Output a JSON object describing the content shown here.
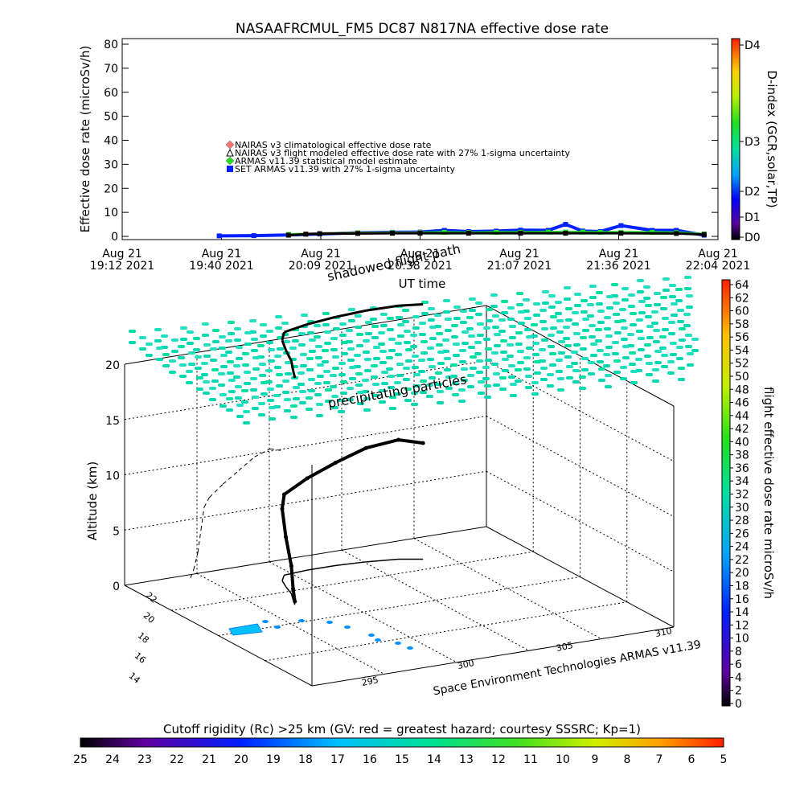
{
  "chart_data": [
    {
      "type": "scatter",
      "title": "NASAAFRCMUL_FM5 DC87 N817NA effective dose rate",
      "ylabel": "Effective dose rate (microSv/h)",
      "xlabel": "UT time",
      "ylim": [
        0,
        80
      ],
      "yticks": [
        "0",
        "10",
        "20",
        "30",
        "40",
        "50",
        "60",
        "70",
        "80"
      ],
      "xticks": [
        {
          "line1": "Aug 21",
          "line2": "19:12 2021"
        },
        {
          "line1": "Aug 21",
          "line2": "19:40 2021"
        },
        {
          "line1": "Aug 21",
          "line2": "20:09 2021"
        },
        {
          "line1": "Aug 21",
          "line2": "20:38 2021"
        },
        {
          "line1": "Aug 21",
          "line2": "21:07 2021"
        },
        {
          "line1": "Aug 21",
          "line2": "21:36 2021"
        },
        {
          "line1": "Aug 21",
          "line2": "22:04 2021"
        }
      ],
      "xlim": [
        "19:12",
        "22:04"
      ],
      "legend": [
        {
          "label": "NAIRAS v3 climatological effective dose rate",
          "color": "#ff7070",
          "marker": "diamond"
        },
        {
          "label": "NAIRAS v3 flight modeled effective dose rate with 27% 1-sigma uncertainty",
          "color": "#000000",
          "marker": "triangle"
        },
        {
          "label": "ARMAS v11.39 statistical model estimate",
          "color": "#20e020",
          "marker": "diamond"
        },
        {
          "label": "SET ARMAS v11.39 with 27% 1-sigma uncertainty",
          "color": "#0020ff",
          "marker": "square"
        }
      ],
      "series": [
        {
          "name": "SET ARMAS v11.39 with 27% 1-sigma uncertainty",
          "color": "#0020ff",
          "x": [
            "19:40",
            "19:50",
            "20:00",
            "20:09",
            "20:20",
            "20:30",
            "20:38",
            "20:45",
            "20:52",
            "21:00",
            "21:07",
            "21:15",
            "21:20",
            "21:25",
            "21:30",
            "21:36",
            "21:45",
            "21:52",
            "22:00"
          ],
          "y": [
            0.2,
            0.3,
            0.6,
            1.0,
            1.5,
            1.7,
            1.8,
            2.5,
            2.0,
            2.2,
            2.6,
            2.5,
            5.0,
            2.2,
            2.0,
            4.5,
            2.5,
            2.5,
            0.5
          ]
        },
        {
          "name": "ARMAS v11.39 statistical model estimate",
          "color": "#20e020",
          "x": [
            "20:00",
            "20:09",
            "20:20",
            "20:30",
            "20:38",
            "20:45",
            "20:52",
            "21:00",
            "21:07",
            "21:15",
            "21:20",
            "21:25",
            "21:30",
            "21:36",
            "21:45",
            "21:52",
            "22:00"
          ],
          "y": [
            0.8,
            1.2,
            1.5,
            1.6,
            1.6,
            1.7,
            1.6,
            1.7,
            1.7,
            1.8,
            1.8,
            1.8,
            1.7,
            1.7,
            1.7,
            1.6,
            1.0
          ]
        },
        {
          "name": "NAIRAS v3 climatological effective dose rate",
          "color": "#ff7070",
          "x": [
            "20:05",
            "20:09",
            "20:20",
            "20:30",
            "20:38"
          ],
          "y": [
            1.0,
            1.2,
            1.3,
            1.4,
            1.4
          ]
        },
        {
          "name": "NAIRAS v3 flight modeled effective dose rate with 27% 1-sigma uncertainty",
          "color": "#000000",
          "x": [
            "20:00",
            "20:05",
            "20:09",
            "20:20",
            "20:30",
            "20:38",
            "20:52",
            "21:07",
            "21:20",
            "21:36",
            "21:52",
            "22:00"
          ],
          "y": [
            0.5,
            0.9,
            1.1,
            1.2,
            1.3,
            1.3,
            1.3,
            1.3,
            1.3,
            1.3,
            1.2,
            0.8
          ]
        }
      ],
      "colorbar_label": "D-index (GCR,solar,TP)",
      "colorbar_ticks": [
        "D0",
        "D1",
        "D2",
        "D3",
        "D4"
      ]
    },
    {
      "type": "scatter",
      "ylabel": "Altitude (km)",
      "zticks": [
        "0",
        "5",
        "10",
        "15",
        "20"
      ],
      "latitude_ticks": [
        "14",
        "16",
        "18",
        "20",
        "22"
      ],
      "longitude_ticks": [
        "295",
        "300",
        "305",
        "310"
      ],
      "annotations": [
        "shadowed flight path",
        "precipitating particles"
      ],
      "credit": "Space Environment Technologies ARMAS v11.39",
      "flight_path": {
        "note_units": "longitude (deg E), latitude (deg N), altitude (km)",
        "lon": [
          298.4,
          298.7,
          299.1,
          299.4,
          299.7,
          300.2,
          301.5,
          303.0,
          304.5,
          306.0,
          307.0
        ],
        "lat": [
          19.4,
          19.8,
          20.3,
          20.9,
          21.4,
          21.8,
          21.9,
          21.9,
          21.8,
          21.6,
          21.3
        ],
        "alt": [
          0.3,
          1.0,
          2.5,
          4.5,
          6.5,
          7.3,
          8.3,
          9.3,
          10.3,
          10.8,
          10.5
        ]
      },
      "colorbar_label": "flight effective dose rate microSv/h",
      "colorbar_ticks": [
        "0",
        "2",
        "4",
        "6",
        "8",
        "10",
        "12",
        "14",
        "16",
        "18",
        "20",
        "22",
        "24",
        "26",
        "28",
        "30",
        "32",
        "34",
        "36",
        "38",
        "40",
        "42",
        "44",
        "46",
        "48",
        "50",
        "52",
        "54",
        "56",
        "58",
        "60",
        "62",
        "64"
      ]
    },
    {
      "type": "heatmap",
      "title": "Cutoff rigidity (Rc) >25 km (GV: red = greatest hazard; courtesy SSSRC; Kp=1)",
      "colorbar_ticks": [
        "25",
        "24",
        "23",
        "22",
        "21",
        "20",
        "19",
        "18",
        "17",
        "16",
        "15",
        "14",
        "13",
        "12",
        "11",
        "10",
        "9",
        "8",
        "7",
        "6",
        "5"
      ]
    }
  ]
}
